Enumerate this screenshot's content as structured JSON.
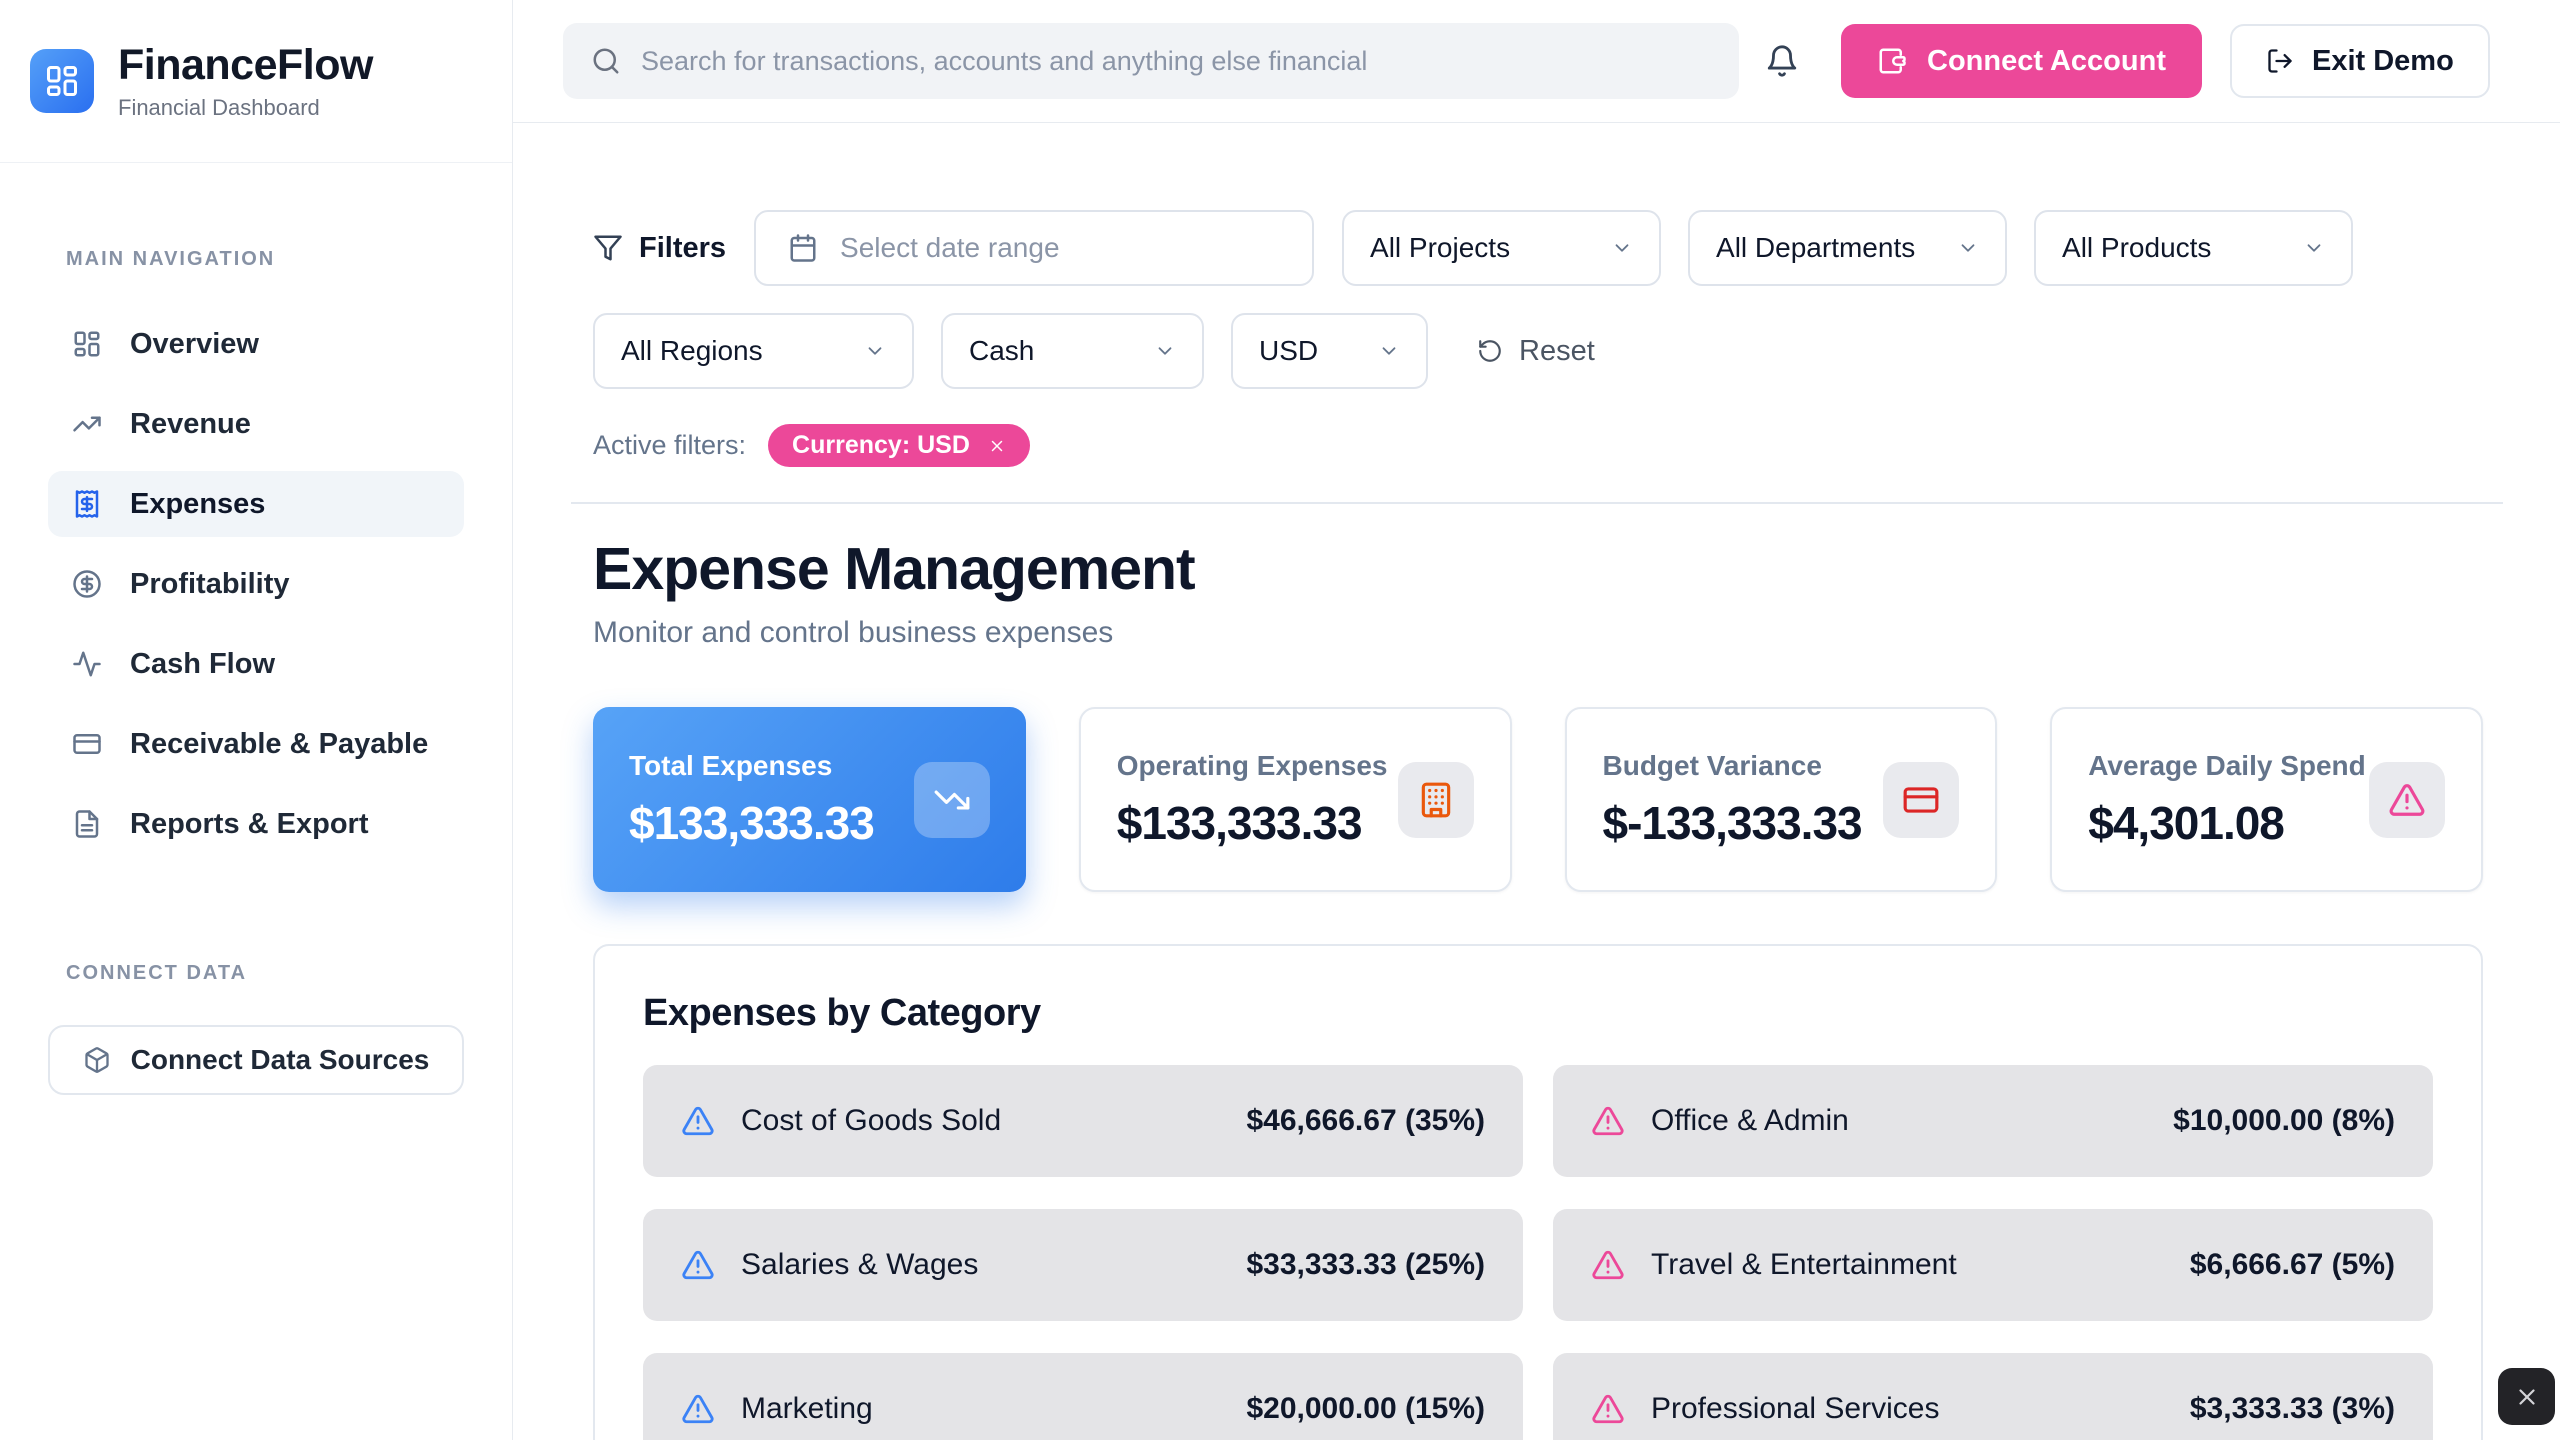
{
  "brand": {
    "name": "FinanceFlow",
    "subtitle": "Financial Dashboard",
    "logo_icon": "layout-dashboard"
  },
  "topbar": {
    "search_placeholder": "Search for transactions, accounts and anything else financial",
    "connect_account_label": "Connect Account",
    "exit_demo_label": "Exit Demo"
  },
  "sidebar": {
    "nav_section_label": "MAIN NAVIGATION",
    "items": [
      {
        "label": "Overview",
        "icon": "layout-dashboard",
        "active": false
      },
      {
        "label": "Revenue",
        "icon": "trending-up",
        "active": false
      },
      {
        "label": "Expenses",
        "icon": "receipt",
        "active": true
      },
      {
        "label": "Profitability",
        "icon": "circle-dollar",
        "active": false
      },
      {
        "label": "Cash Flow",
        "icon": "activity",
        "active": false
      },
      {
        "label": "Receivable & Payable",
        "icon": "credit-card",
        "active": false
      },
      {
        "label": "Reports & Export",
        "icon": "file-text",
        "active": false
      }
    ],
    "connect_section_label": "CONNECT DATA",
    "connect_button_label": "Connect Data Sources"
  },
  "filters": {
    "label": "Filters",
    "date_range_placeholder": "Select date range",
    "dropdowns_row1": [
      "All Projects",
      "All Departments",
      "All Products"
    ],
    "dropdowns_row2": [
      "All Regions",
      "Cash",
      "USD"
    ],
    "reset_label": "Reset",
    "active_filters_label": "Active filters:",
    "active_chip_label": "Currency: USD"
  },
  "page": {
    "title": "Expense Management",
    "subtitle": "Monitor and control business expenses"
  },
  "stats": [
    {
      "label": "Total Expenses",
      "value": "$133,333.33",
      "icon": "trending-down",
      "icon_color": "#ffffff",
      "highlight": true
    },
    {
      "label": "Operating Expenses",
      "value": "$133,333.33",
      "icon": "building",
      "icon_color": "#ea580c",
      "highlight": false
    },
    {
      "label": "Budget Variance",
      "value": "$-133,333.33",
      "icon": "credit-card",
      "icon_color": "#dc2626",
      "highlight": false
    },
    {
      "label": "Average Daily Spend",
      "value": "$4,301.08",
      "icon": "alert-triangle",
      "icon_color": "#ec4899",
      "highlight": false
    }
  ],
  "categories": {
    "title": "Expenses by Category",
    "items": [
      {
        "name": "Cost of Goods Sold",
        "value": "$46,666.67 (35%)",
        "icon": "alert-triangle",
        "icon_color": "#3b82f6"
      },
      {
        "name": "Office & Admin",
        "value": "$10,000.00 (8%)",
        "icon": "alert-triangle",
        "icon_color": "#ec4899"
      },
      {
        "name": "Salaries & Wages",
        "value": "$33,333.33 (25%)",
        "icon": "alert-triangle",
        "icon_color": "#3b82f6"
      },
      {
        "name": "Travel & Entertainment",
        "value": "$6,666.67 (5%)",
        "icon": "alert-triangle",
        "icon_color": "#ec4899"
      },
      {
        "name": "Marketing",
        "value": "$20,000.00 (15%)",
        "icon": "alert-triangle",
        "icon_color": "#3b82f6"
      },
      {
        "name": "Professional Services",
        "value": "$3,333.33 (3%)",
        "icon": "alert-triangle",
        "icon_color": "#ec4899"
      }
    ]
  },
  "colors": {
    "accent_pink": "#ec4899",
    "accent_blue": "#2e7cea",
    "blue_gradient_start": "#57a3f7",
    "blue_gradient_end": "#2e7cea",
    "orange_icon": "#ea580c",
    "red_icon": "#dc2626",
    "category_blue_icon": "#3b82f6",
    "category_pink_icon": "#ec4899"
  }
}
